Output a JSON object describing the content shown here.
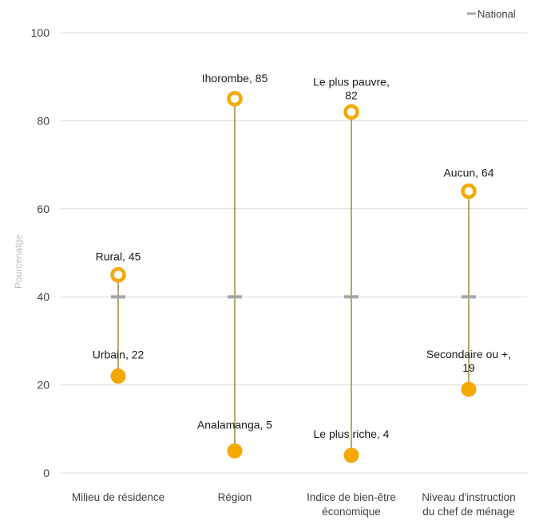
{
  "chart_data": {
    "type": "scatter",
    "subtype": "dumbbell",
    "ylabel": "Pourcenatge",
    "ylim": [
      0,
      100
    ],
    "yticks": [
      0,
      20,
      40,
      60,
      80,
      100
    ],
    "grid": true,
    "legend": {
      "position": "top-right",
      "entries": [
        "National"
      ]
    },
    "national": 40,
    "categories": [
      [
        "Milieu de résidence"
      ],
      [
        "Région"
      ],
      [
        "Indice de bien-être",
        "économique"
      ],
      [
        "Niveau d'instruction",
        "du chef de ménage"
      ]
    ],
    "high": [
      {
        "label": [
          "Rural, 45"
        ],
        "value": 45
      },
      {
        "label": [
          "Ihorombe, 85"
        ],
        "value": 85
      },
      {
        "label": [
          "Le plus pauvre,",
          "82"
        ],
        "value": 82
      },
      {
        "label": [
          "Aucun, 64"
        ],
        "value": 64
      }
    ],
    "low": [
      {
        "label": [
          "Urbain, 22"
        ],
        "value": 22
      },
      {
        "label": [
          "Analamanga, 5"
        ],
        "value": 5
      },
      {
        "label": [
          "Le plus riche, 4"
        ],
        "value": 4
      },
      {
        "label": [
          "Secondaire ou +,",
          "19"
        ],
        "value": 19
      }
    ],
    "colors": {
      "marker": "#f5a800",
      "connector": "#8b7a1c",
      "national": "#a6a6a6",
      "grid": "#d9d9d9"
    }
  }
}
